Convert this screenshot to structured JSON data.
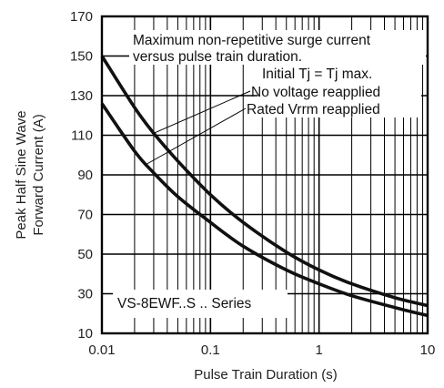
{
  "chart_data": {
    "type": "line",
    "xscale": "log",
    "xlim": [
      0.01,
      10
    ],
    "ylim": [
      10,
      170
    ],
    "xlabel": "Pulse Train Duration (s)",
    "ylabel_lines": [
      "Peak Half Sine Wave",
      "Forward Current (A)"
    ],
    "x_ticks": [
      0.01,
      0.1,
      1,
      10
    ],
    "x_tick_labels": [
      "0.01",
      "0.1",
      "1",
      "10"
    ],
    "y_ticks": [
      10,
      30,
      50,
      70,
      90,
      110,
      130,
      150,
      170
    ],
    "y_tick_labels": [
      "10",
      "30",
      "50",
      "70",
      "90",
      "110",
      "130",
      "150",
      "170"
    ],
    "grid": true,
    "annotations": {
      "title_lines": [
        "Maximum non-repetitive surge current",
        "versus pulse train duration."
      ],
      "condition": "Initial Tj = Tj max.",
      "curve_upper_label": "No voltage reapplied",
      "curve_lower_label": "Rated Vrrm reapplied",
      "series_label": "VS-8EWF..S .. Series"
    },
    "series": [
      {
        "x": [
          0.01,
          0.02,
          0.03,
          0.05,
          0.1,
          0.2,
          0.5,
          1,
          2,
          5,
          10
        ],
        "y": [
          150,
          124,
          111,
          97,
          80,
          66,
          51,
          42,
          35,
          28,
          24
        ]
      },
      {
        "x": [
          0.01,
          0.02,
          0.03,
          0.05,
          0.1,
          0.2,
          0.5,
          1,
          2,
          5,
          10
        ],
        "y": [
          126,
          102,
          91,
          79,
          66,
          54,
          42,
          35,
          29,
          23,
          19
        ]
      }
    ]
  }
}
